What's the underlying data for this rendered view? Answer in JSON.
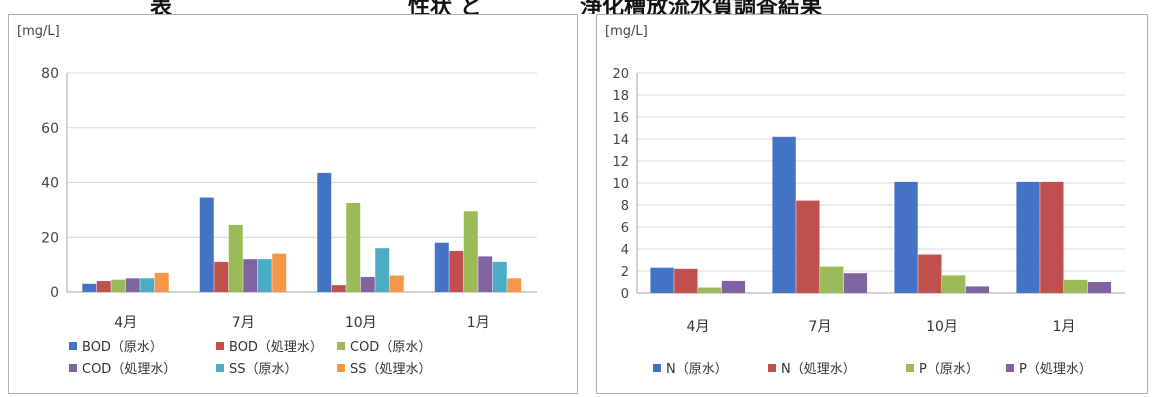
{
  "page_header": {
    "left_fragment": "表",
    "mid_fragment": "性状 と",
    "right_fragment": "浄化槽放流水質調査結果"
  },
  "chart_data": [
    {
      "type": "bar",
      "ylabel": "[mg/L]",
      "ylim": [
        0,
        80
      ],
      "yticks": [
        0,
        20,
        40,
        60,
        80
      ],
      "grid": true,
      "legend_position": "bottom",
      "categories": [
        "4月",
        "7月",
        "10月",
        "1月"
      ],
      "series": [
        {
          "name": "BOD（原水）",
          "color": "#4472c4",
          "values": [
            3,
            34.5,
            43.5,
            18
          ]
        },
        {
          "name": "BOD（処理水）",
          "color": "#c0504d",
          "values": [
            4,
            11,
            2.5,
            15
          ]
        },
        {
          "name": "COD（原水）",
          "color": "#9bbb59",
          "values": [
            4.5,
            24.5,
            32.5,
            29.5
          ]
        },
        {
          "name": "COD（処理水）",
          "color": "#8064a2",
          "values": [
            5,
            12,
            5.5,
            13
          ]
        },
        {
          "name": "SS（原水）",
          "color": "#4bacc6",
          "values": [
            5,
            12,
            16,
            11
          ]
        },
        {
          "name": "SS（処理水）",
          "color": "#f79646",
          "values": [
            7,
            14,
            6,
            5
          ]
        }
      ]
    },
    {
      "type": "bar",
      "ylabel": "[mg/L]",
      "ylim": [
        0,
        20
      ],
      "yticks": [
        0,
        2,
        4,
        6,
        8,
        10,
        12,
        14,
        16,
        18,
        20
      ],
      "grid": true,
      "legend_position": "bottom",
      "categories": [
        "4月",
        "7月",
        "10月",
        "1月"
      ],
      "series": [
        {
          "name": "N（原水）",
          "color": "#4472c4",
          "values": [
            2.3,
            14.2,
            10.1,
            10.1
          ]
        },
        {
          "name": "N（処理水）",
          "color": "#c0504d",
          "values": [
            2.2,
            8.4,
            3.5,
            10.1
          ]
        },
        {
          "name": "P（原水）",
          "color": "#9bbb59",
          "values": [
            0.5,
            2.4,
            1.6,
            1.2
          ]
        },
        {
          "name": "P（処理水）",
          "color": "#8064a2",
          "values": [
            1.1,
            1.8,
            0.6,
            1.0
          ]
        }
      ]
    }
  ]
}
